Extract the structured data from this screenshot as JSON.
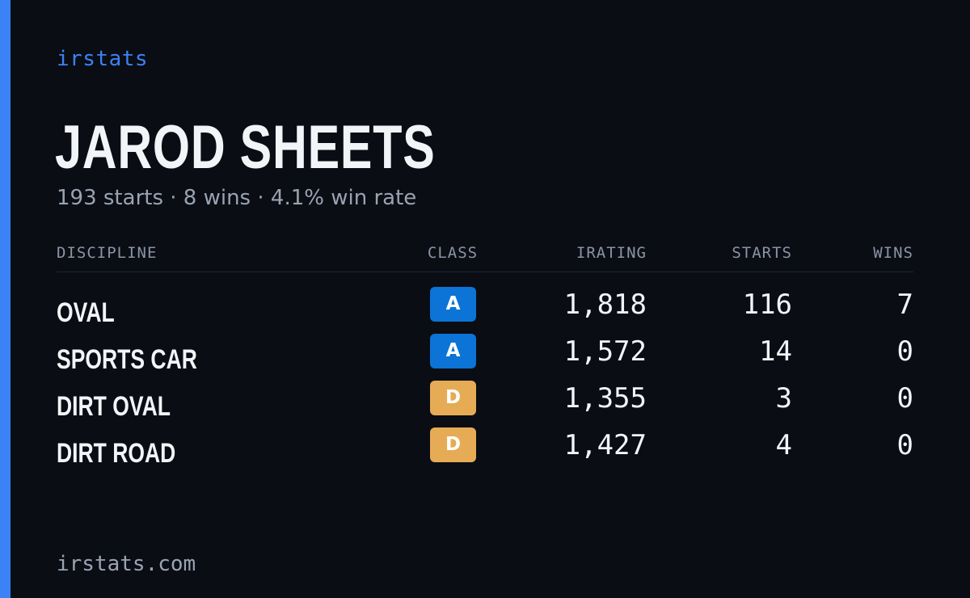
{
  "brand": "irstats",
  "driver": {
    "name": "JAROD SHEETS",
    "summary": "193 starts · 8 wins · 4.1% win rate"
  },
  "table": {
    "headers": {
      "discipline": "DISCIPLINE",
      "class": "CLASS",
      "irating": "IRATING",
      "starts": "STARTS",
      "wins": "WINS"
    },
    "rows": [
      {
        "discipline": "OVAL",
        "class": "A",
        "irating": "1,818",
        "starts": "116",
        "wins": "7"
      },
      {
        "discipline": "SPORTS CAR",
        "class": "A",
        "irating": "1,572",
        "starts": "14",
        "wins": "0"
      },
      {
        "discipline": "DIRT OVAL",
        "class": "D",
        "irating": "1,355",
        "starts": "3",
        "wins": "0"
      },
      {
        "discipline": "DIRT ROAD",
        "class": "D",
        "irating": "1,427",
        "starts": "4",
        "wins": "0"
      }
    ]
  },
  "footer": "irstats.com",
  "colors": {
    "accent": "#3b82f6",
    "background": "#0a0d14",
    "class_a": "#0b74d6",
    "class_d": "#e6ab55"
  }
}
